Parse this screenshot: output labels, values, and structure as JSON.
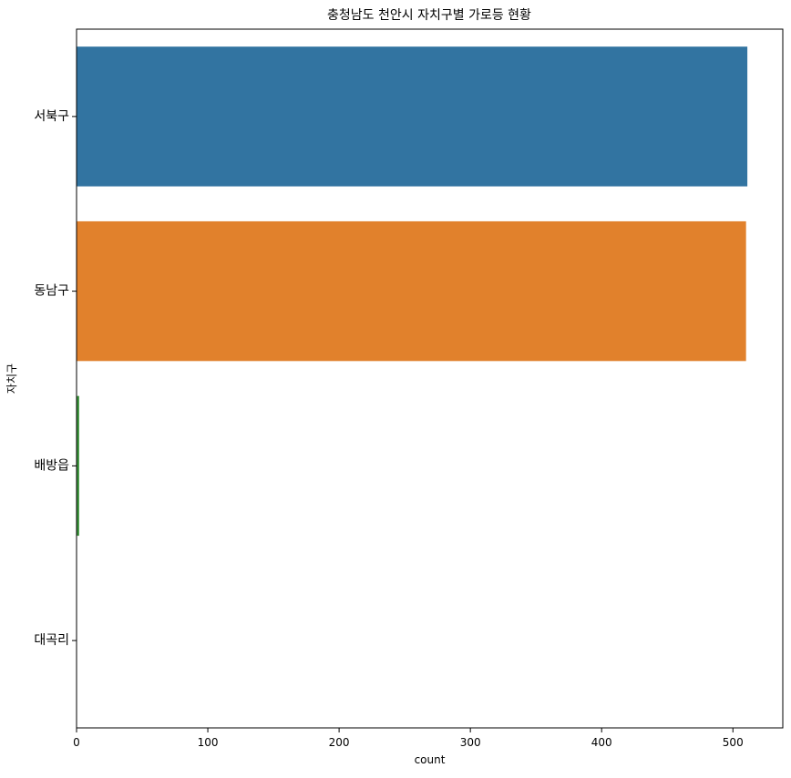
{
  "chart_data": {
    "type": "bar",
    "orientation": "horizontal",
    "title": "충청남도 천안시 자치구별 가로등 현황",
    "xlabel": "count",
    "ylabel": "자치구",
    "categories": [
      "서북구",
      "동남구",
      "배방읍",
      "대곡리"
    ],
    "values": [
      511,
      510,
      2,
      0
    ],
    "colors": [
      "#3274a1",
      "#e1812c",
      "#3a923a",
      "#c03d3e"
    ],
    "xlim": [
      0,
      538
    ],
    "xticks": [
      0,
      100,
      200,
      300,
      400,
      500
    ],
    "grid": false,
    "legend": "none"
  }
}
